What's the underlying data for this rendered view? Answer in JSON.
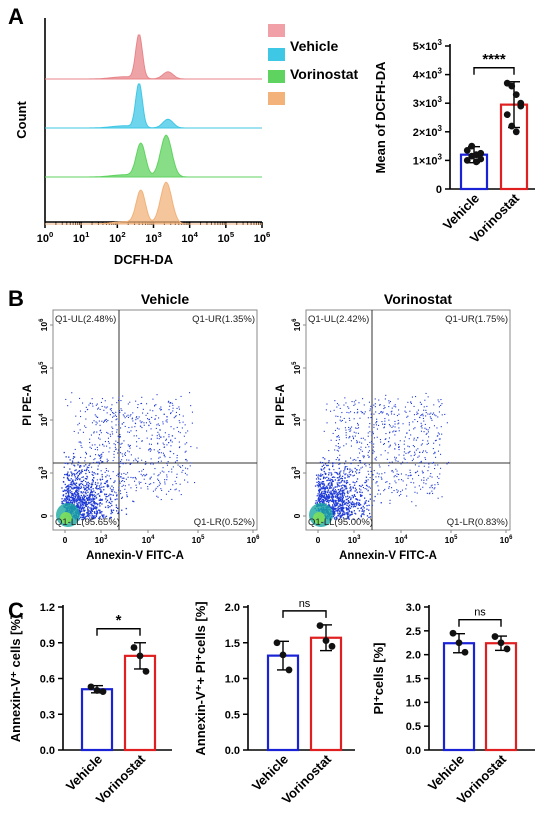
{
  "panels": {
    "a": "A",
    "b": "B",
    "c": "C"
  },
  "colors": {
    "vehicle_bar": "#1a22d6",
    "vorinostat_bar": "#e02020",
    "hist_red": "#e8858a",
    "hist_cyan": "#3fc7e6",
    "hist_green": "#5fd35f",
    "hist_orange": "#f2b27a",
    "dots": "#1f3ad6"
  },
  "chart_data": [
    {
      "id": "A-hist",
      "type": "area",
      "ylabel": "Count",
      "xlabel": "DCFH-DA",
      "x_scale": "log",
      "x_ticks": [
        "10^0",
        "10^1",
        "10^2",
        "10^3",
        "10^4",
        "10^5",
        "10^6"
      ],
      "legend": [
        {
          "name": "Vehicle",
          "swatch": "#f0a0a6"
        },
        {
          "name": "Vehicle",
          "swatch": "#3fc7e6"
        },
        {
          "name": "Vorinostat",
          "swatch": "#5fd35f"
        },
        {
          "name": "Vorinostat",
          "swatch": "#f2b27a"
        }
      ],
      "series": [
        {
          "color": "#e8858a",
          "peak_x": 2.6,
          "shoulder_x": 3.4,
          "shoulder_rel": 0.18
        },
        {
          "color": "#3fc7e6",
          "peak_x": 2.6,
          "shoulder_x": 3.4,
          "shoulder_rel": 0.22
        },
        {
          "color": "#5fd35f",
          "peak_x": 2.7,
          "shoulder_x": 3.35,
          "shoulder_rel": 1.0
        },
        {
          "color": "#f2b27a",
          "peak_x": 2.7,
          "shoulder_x": 3.35,
          "shoulder_rel": 1.0
        }
      ]
    },
    {
      "id": "A-bar",
      "type": "bar",
      "categories": [
        "Vehicle",
        "Vorinostat"
      ],
      "values": [
        1200,
        2950
      ],
      "errors": [
        280,
        800
      ],
      "points": [
        [
          1350,
          1500,
          1200,
          1050,
          1000,
          1150,
          950,
          1250
        ],
        [
          3700,
          3600,
          3300,
          2900,
          2600,
          2200,
          2000,
          3000
        ]
      ],
      "ylabel": "Mean of  DCFH-DA",
      "ylim": [
        0,
        5000
      ],
      "yticks": [
        "0",
        "1×10³",
        "2×10³",
        "3×10³",
        "4×10³",
        "5×10³"
      ],
      "significance": "****"
    },
    {
      "id": "B-vehicle",
      "type": "scatter",
      "title": "Vehicle",
      "xlabel": "Annexin-V FITC-A",
      "ylabel": "PI PE-A",
      "x_ticks": [
        "0",
        "10^3",
        "10^4",
        "10^5",
        "10^6"
      ],
      "y_ticks": [
        "0",
        "10^3",
        "10^4",
        "10^5",
        "10^6"
      ],
      "quadrants": {
        "UL": "Q1-UL(2.48%)",
        "UR": "Q1-UR(1.35%)",
        "LL": "Q1-LL(95.65%)",
        "LR": "Q1-LR(0.52%)"
      }
    },
    {
      "id": "B-vorinostat",
      "type": "scatter",
      "title": "Vorinostat",
      "xlabel": "Annexin-V FITC-A",
      "ylabel": "PI PE-A",
      "x_ticks": [
        "0",
        "10^3",
        "10^4",
        "10^5",
        "10^6"
      ],
      "y_ticks": [
        "0",
        "10^3",
        "10^4",
        "10^5",
        "10^6"
      ],
      "quadrants": {
        "UL": "Q1-UL(2.42%)",
        "UR": "Q1-UR(1.75%)",
        "LL": "Q1-LL(95.00%)",
        "LR": "Q1-LR(0.83%)"
      }
    },
    {
      "id": "C1",
      "type": "bar",
      "categories": [
        "Vehicle",
        "Vorinostat"
      ],
      "values": [
        0.51,
        0.79
      ],
      "errors": [
        0.03,
        0.11
      ],
      "points": [
        [
          0.53,
          0.5,
          0.49
        ],
        [
          0.86,
          0.79,
          0.66
        ]
      ],
      "ylabel": "Annexin-V⁺ cells [%]",
      "ylim": [
        0,
        1.2
      ],
      "yticks": [
        "0.0",
        "0.3",
        "0.6",
        "0.9",
        "1.2"
      ],
      "significance": "*"
    },
    {
      "id": "C2",
      "type": "bar",
      "categories": [
        "Vehicle",
        "Vorinostat"
      ],
      "values": [
        1.32,
        1.57
      ],
      "errors": [
        0.2,
        0.18
      ],
      "points": [
        [
          1.5,
          1.33,
          1.12
        ],
        [
          1.74,
          1.53,
          1.45
        ]
      ],
      "ylabel": "Annexin-V⁺+ PI⁺cells [%]",
      "ylim": [
        0,
        2.0
      ],
      "yticks": [
        "0.0",
        "0.5",
        "1.0",
        "1.5",
        "2.0"
      ],
      "significance": "ns"
    },
    {
      "id": "C3",
      "type": "bar",
      "categories": [
        "Vehicle",
        "Vorinostat"
      ],
      "values": [
        2.24,
        2.24
      ],
      "errors": [
        0.2,
        0.15
      ],
      "points": [
        [
          2.45,
          2.25,
          2.05
        ],
        [
          2.38,
          2.25,
          2.12
        ]
      ],
      "ylabel": "PI⁺cells [%]",
      "ylim": [
        0,
        3.0
      ],
      "yticks": [
        "0.0",
        "0.5",
        "1.0",
        "1.5",
        "2.0",
        "2.5",
        "3.0"
      ],
      "significance": "ns"
    }
  ]
}
